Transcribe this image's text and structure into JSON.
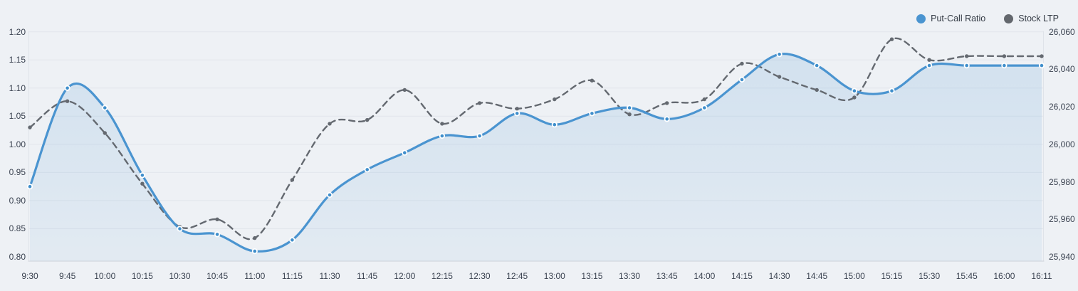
{
  "legend": [
    {
      "name": "Put-Call Ratio",
      "color": "#4a94d0"
    },
    {
      "name": "Stock LTP",
      "color": "#63676d"
    }
  ],
  "colors": {
    "background": "#eef1f5",
    "gridline": "#e2e6ec",
    "axis_line": "#ccd1d9",
    "plot_edge": "#dfe3e9",
    "tick_label": "#3a4250",
    "put_call_blue": "#4a94d0",
    "put_call_marker": "#3f8ecb",
    "stock_ltp_gray": "#646970",
    "area_fill": "#4a94d0"
  },
  "chart_data": {
    "type": "line",
    "title": "",
    "grid": "horizontal",
    "legend_position": "top-right",
    "x": [
      "9:30",
      "9:45",
      "10:00",
      "10:15",
      "10:30",
      "10:45",
      "11:00",
      "11:15",
      "11:30",
      "11:45",
      "12:00",
      "12:15",
      "12:30",
      "12:45",
      "13:00",
      "13:15",
      "13:30",
      "13:45",
      "14:00",
      "14:15",
      "14:30",
      "14:45",
      "15:00",
      "15:15",
      "15:30",
      "15:45",
      "16:00",
      "16:11"
    ],
    "series": [
      {
        "name": "Put-Call Ratio",
        "axis": "left",
        "style": "smooth solid line, area fill below, circular markers with white ring",
        "color": "#4a94d0",
        "values": [
          0.925,
          1.1,
          1.065,
          0.945,
          0.85,
          0.84,
          0.81,
          0.83,
          0.91,
          0.955,
          0.985,
          1.015,
          1.015,
          1.055,
          1.035,
          1.055,
          1.065,
          1.045,
          1.065,
          1.115,
          1.16,
          1.14,
          1.095,
          1.095,
          1.14,
          1.14,
          1.14,
          1.14
        ]
      },
      {
        "name": "Stock LTP",
        "axis": "right",
        "style": "smooth dashed line, small gray dot markers",
        "color": "#646970",
        "values": [
          26009,
          26023,
          26006,
          25979,
          25956,
          25960,
          25950,
          25981,
          26011,
          26013,
          26029,
          26011,
          26022,
          26019,
          26024,
          26034,
          26016,
          26022,
          26024,
          26043,
          26036,
          26029,
          26025,
          26056,
          26045,
          26047,
          26047,
          26047
        ]
      }
    ],
    "left_axis": {
      "min": 0.8,
      "max": 1.2,
      "ticks": [
        1.2,
        1.15,
        1.1,
        1.05,
        1.0,
        0.95,
        0.9,
        0.85,
        0.8
      ],
      "tick_labels": [
        "1.20",
        "1.15",
        "1.10",
        "1.05",
        "1.00",
        "0.95",
        "0.90",
        "0.85",
        "0.80"
      ]
    },
    "right_axis": {
      "min": 25940,
      "max": 26060,
      "ticks": [
        26060,
        26040,
        26020,
        26000,
        25980,
        25960,
        25940
      ],
      "tick_labels": [
        "26,060",
        "26,040",
        "26,020",
        "26,000",
        "25,980",
        "25,960",
        "25,940"
      ]
    }
  }
}
